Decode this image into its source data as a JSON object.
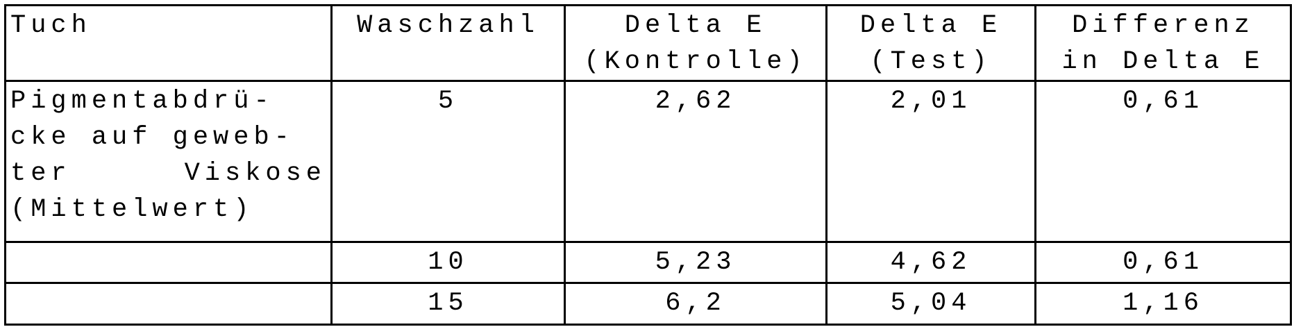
{
  "table": {
    "headers": [
      "Tuch",
      "Waschzahl",
      "Delta E\n(Kontrolle)",
      "Delta E\n(Test)",
      "Differenz\nin Delta E"
    ],
    "header_lines": [
      [
        "Tuch"
      ],
      [
        "Waschzahl"
      ],
      [
        "Delta E",
        "(Kontrolle)"
      ],
      [
        "Delta E",
        "(Test)"
      ],
      [
        "Differenz",
        "in Delta E"
      ]
    ],
    "rows": [
      {
        "tuch": "Pigmentabdrü- cke auf geweb- ter Viskose (Mittelwert)",
        "waschzahl": "5",
        "delta_e_kontrolle": "2,62",
        "delta_e_test": "2,01",
        "differenz": "0,61"
      },
      {
        "tuch": "",
        "waschzahl": "10",
        "delta_e_kontrolle": "5,23",
        "delta_e_test": "4,62",
        "differenz": "0,61"
      },
      {
        "tuch": "",
        "waschzahl": "15",
        "delta_e_kontrolle": "6,2",
        "delta_e_test": "5,04",
        "differenz": "1,16"
      }
    ],
    "tuch_lines": [
      "Pigmentabdrü-",
      "cke auf geweb-",
      "ter Viskose",
      "(Mittelwert)"
    ]
  }
}
